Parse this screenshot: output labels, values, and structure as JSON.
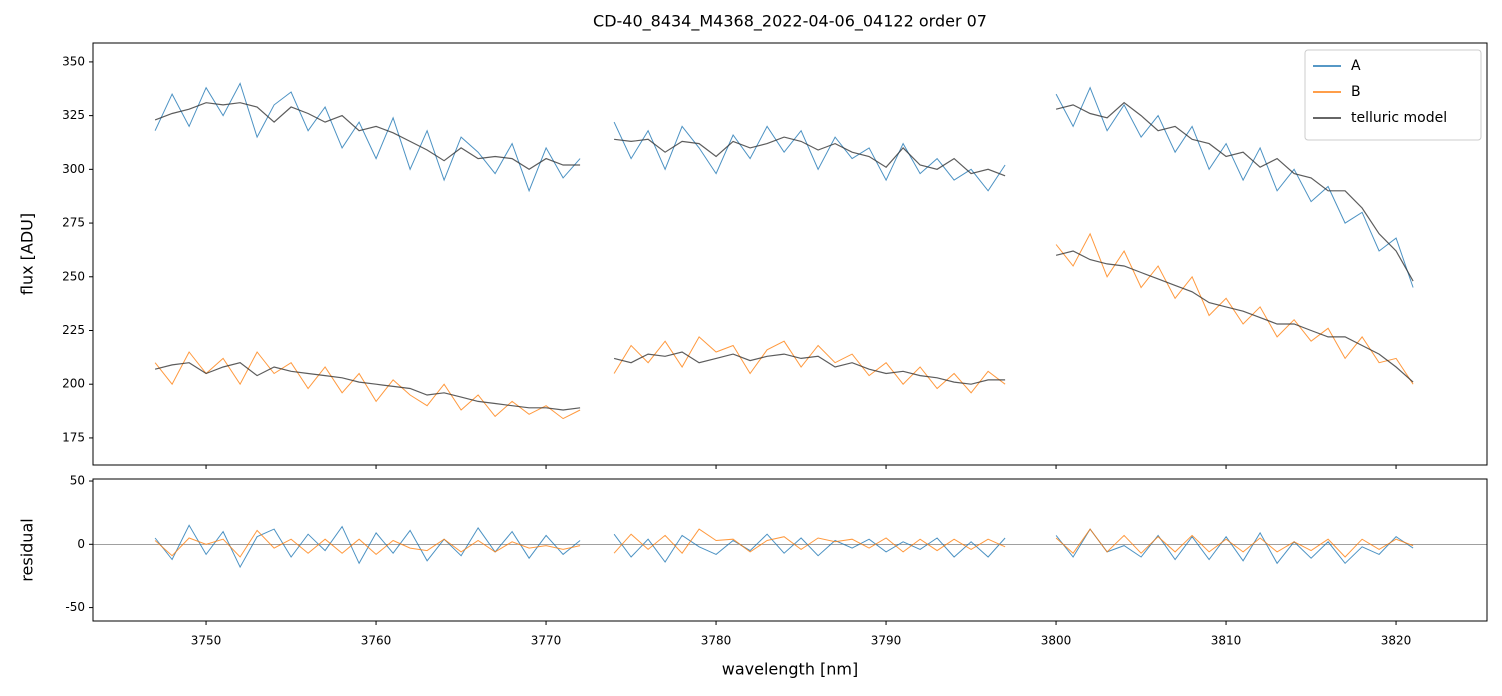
{
  "chart_data": [
    {
      "type": "line",
      "title": "CD-40_8434_M4368_2022-04-06_04122  order 07",
      "ylabel": "flux [ADU]",
      "x": [
        3747,
        3748,
        3749,
        3750,
        3751,
        3752,
        3753,
        3754,
        3755,
        3756,
        3757,
        3758,
        3759,
        3760,
        3761,
        3762,
        3763,
        3764,
        3765,
        3766,
        3767,
        3768,
        3769,
        3770,
        3771,
        3772,
        3773,
        3774,
        3775,
        3776,
        3777,
        3778,
        3779,
        3780,
        3781,
        3782,
        3783,
        3784,
        3785,
        3786,
        3787,
        3788,
        3789,
        3790,
        3791,
        3792,
        3793,
        3794,
        3795,
        3796,
        3797,
        3798,
        3799,
        3800,
        3801,
        3802,
        3803,
        3804,
        3805,
        3806,
        3807,
        3808,
        3809,
        3810,
        3811,
        3812,
        3813,
        3814,
        3815,
        3816,
        3817,
        3818,
        3819,
        3820,
        3821
      ],
      "series": [
        {
          "name": "A",
          "color": "#1f77b4",
          "values": [
            318,
            335,
            320,
            338,
            325,
            340,
            315,
            330,
            336,
            318,
            329,
            310,
            322,
            305,
            324,
            300,
            318,
            295,
            315,
            308,
            298,
            312,
            290,
            310,
            296,
            305,
            null,
            322,
            305,
            318,
            300,
            320,
            310,
            298,
            316,
            305,
            320,
            308,
            318,
            300,
            315,
            305,
            310,
            295,
            312,
            298,
            305,
            295,
            300,
            290,
            302,
            null,
            null,
            335,
            320,
            338,
            318,
            330,
            315,
            325,
            308,
            320,
            300,
            312,
            295,
            310,
            290,
            300,
            285,
            292,
            275,
            280,
            262,
            268,
            245
          ]
        },
        {
          "name": "B",
          "color": "#ff7f0e",
          "values": [
            210,
            200,
            215,
            205,
            212,
            200,
            215,
            205,
            210,
            198,
            208,
            196,
            205,
            192,
            202,
            195,
            190,
            200,
            188,
            195,
            185,
            192,
            186,
            190,
            184,
            188,
            null,
            205,
            218,
            210,
            220,
            208,
            222,
            215,
            218,
            205,
            216,
            220,
            208,
            218,
            210,
            214,
            204,
            210,
            200,
            208,
            198,
            205,
            196,
            206,
            200,
            null,
            null,
            265,
            255,
            270,
            250,
            262,
            245,
            255,
            240,
            250,
            232,
            240,
            228,
            236,
            222,
            230,
            220,
            226,
            212,
            222,
            210,
            212,
            200
          ]
        },
        {
          "name": "telluric model",
          "color": "#333333",
          "values": [
            323,
            326,
            328,
            331,
            330,
            331,
            329,
            322,
            329,
            326,
            322,
            325,
            318,
            320,
            317,
            313,
            309,
            304,
            310,
            305,
            306,
            305,
            300,
            305,
            302,
            302,
            null,
            314,
            313,
            314,
            308,
            313,
            312,
            306,
            313,
            310,
            312,
            315,
            313,
            309,
            312,
            308,
            306,
            301,
            310,
            302,
            300,
            305,
            298,
            300,
            297,
            null,
            null,
            328,
            330,
            326,
            324,
            331,
            325,
            318,
            320,
            314,
            312,
            306,
            308,
            301,
            305,
            298,
            296,
            290,
            290,
            282,
            270,
            262,
            248
          ]
        },
        {
          "color": "#333333",
          "values": [
            207,
            209,
            210,
            205,
            208,
            210,
            204,
            208,
            206,
            205,
            204,
            203,
            201,
            200,
            199,
            198,
            195,
            196,
            194,
            192,
            191,
            190,
            189,
            189,
            188,
            189,
            null,
            212,
            210,
            214,
            213,
            215,
            210,
            212,
            214,
            211,
            213,
            214,
            212,
            213,
            208,
            210,
            207,
            205,
            206,
            204,
            203,
            201,
            200,
            202,
            202,
            null,
            null,
            260,
            262,
            258,
            256,
            255,
            252,
            249,
            246,
            243,
            238,
            236,
            234,
            231,
            228,
            228,
            225,
            222,
            222,
            218,
            214,
            208,
            201
          ]
        }
      ],
      "xlim": [
        3743.35,
        3825.35
      ],
      "xticks": [
        3750,
        3760,
        3770,
        3780,
        3790,
        3800,
        3810,
        3820
      ],
      "ylim": [
        162.4,
        358.8
      ],
      "yticks": [
        175,
        200,
        225,
        250,
        275,
        300,
        325,
        350
      ],
      "legend": "upper right"
    },
    {
      "type": "line",
      "ylabel": "residual",
      "xlabel": "wavelength [nm]",
      "x": [
        3747,
        3748,
        3749,
        3750,
        3751,
        3752,
        3753,
        3754,
        3755,
        3756,
        3757,
        3758,
        3759,
        3760,
        3761,
        3762,
        3763,
        3764,
        3765,
        3766,
        3767,
        3768,
        3769,
        3770,
        3771,
        3772,
        3773,
        3774,
        3775,
        3776,
        3777,
        3778,
        3779,
        3780,
        3781,
        3782,
        3783,
        3784,
        3785,
        3786,
        3787,
        3788,
        3789,
        3790,
        3791,
        3792,
        3793,
        3794,
        3795,
        3796,
        3797,
        3798,
        3799,
        3800,
        3801,
        3802,
        3803,
        3804,
        3805,
        3806,
        3807,
        3808,
        3809,
        3810,
        3811,
        3812,
        3813,
        3814,
        3815,
        3816,
        3817,
        3818,
        3819,
        3820,
        3821
      ],
      "series": [
        {
          "color": "#1f77b4",
          "values": [
            5,
            -12,
            15,
            -8,
            10,
            -18,
            6,
            12,
            -10,
            8,
            -5,
            14,
            -15,
            9,
            -7,
            11,
            -13,
            4,
            -9,
            13,
            -6,
            10,
            -11,
            7,
            -8,
            3,
            null,
            8,
            -10,
            4,
            -14,
            7,
            -2,
            -8,
            3,
            -5,
            8,
            -7,
            5,
            -9,
            3,
            -3,
            4,
            -6,
            2,
            -4,
            5,
            -10,
            2,
            -10,
            5,
            null,
            null,
            7,
            -10,
            12,
            -6,
            -1,
            -10,
            7,
            -12,
            6,
            -12,
            6,
            -13,
            9,
            -15,
            2,
            -11,
            2,
            -15,
            -2,
            -8,
            6,
            -3
          ]
        },
        {
          "color": "#ff7f0e",
          "values": [
            3,
            -9,
            5,
            0,
            4,
            -10,
            11,
            -3,
            4,
            -7,
            4,
            -7,
            4,
            -8,
            3,
            -3,
            -5,
            4,
            -6,
            3,
            -6,
            2,
            -3,
            -1,
            -4,
            -1,
            null,
            -7,
            8,
            -4,
            7,
            -7,
            12,
            3,
            4,
            -6,
            3,
            6,
            -4,
            5,
            2,
            4,
            -3,
            5,
            -6,
            4,
            -5,
            4,
            -4,
            4,
            -2,
            null,
            null,
            5,
            -7,
            12,
            -6,
            7,
            -7,
            6,
            -6,
            7,
            -6,
            4,
            -6,
            5,
            -6,
            2,
            -5,
            4,
            -10,
            4,
            -4,
            4,
            -1
          ]
        }
      ],
      "hline": 0,
      "xlim": [
        3743.35,
        3825.35
      ],
      "xticks": [
        3750,
        3760,
        3770,
        3780,
        3790,
        3800,
        3810,
        3820
      ],
      "ylim": [
        -60.6,
        51.6
      ],
      "yticks": [
        -50,
        0,
        50
      ]
    }
  ]
}
